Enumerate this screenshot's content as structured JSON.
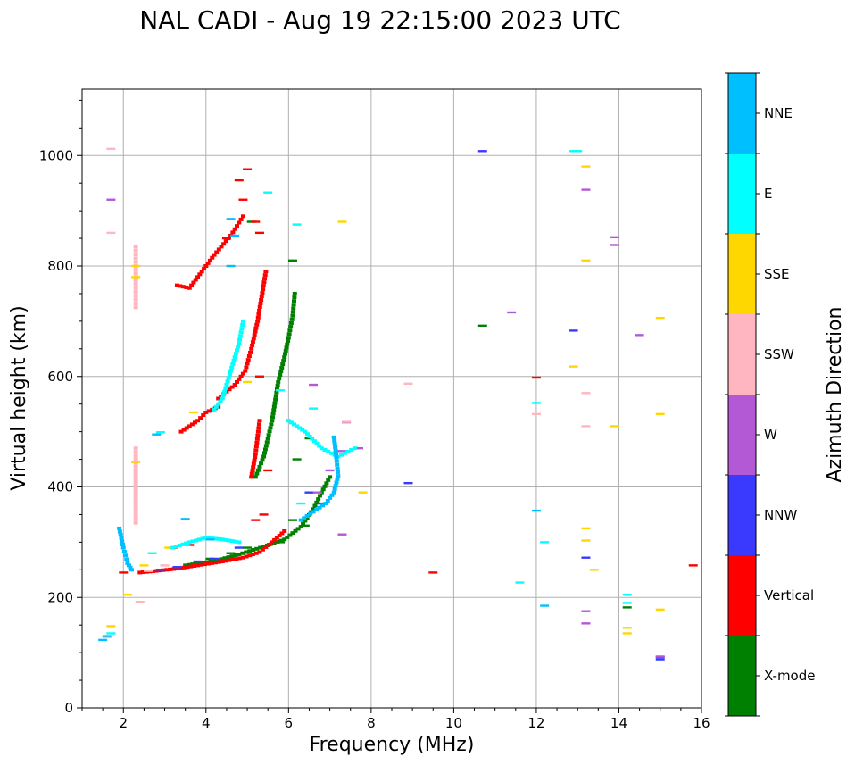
{
  "chart_data": {
    "type": "scatter",
    "title": "NAL CADI - Aug 19 22:15:00 2023 UTC",
    "xlabel": "Frequency (MHz)",
    "ylabel": "Virtual height (km)",
    "xlim": [
      1,
      16
    ],
    "ylim": [
      0,
      1120
    ],
    "xticks": [
      2,
      4,
      6,
      8,
      10,
      12,
      14,
      16
    ],
    "xtick_labels": [
      "2",
      "4",
      "6",
      "8",
      "10",
      "12",
      "14",
      "16"
    ],
    "yticks": [
      0,
      200,
      400,
      600,
      800,
      1000
    ],
    "ytick_labels": [
      "0",
      "200",
      "400",
      "600",
      "800",
      "1000"
    ],
    "grid": true,
    "colorbar": {
      "title": "Azimuth Direction",
      "categories": [
        "X-mode",
        "Vertical",
        "NNW",
        "W",
        "SSW",
        "SSE",
        "E",
        "NNE"
      ],
      "colors": [
        "#008000",
        "#ff0000",
        "#3a3aff",
        "#b459d6",
        "#ffb6c1",
        "#ffd700",
        "#00ffff",
        "#00bfff"
      ]
    },
    "traces": [
      {
        "name": "X-mode",
        "color": "#008000",
        "segments": [
          [
            [
              3.5,
              258
            ],
            [
              4.2,
              266
            ],
            [
              4.8,
              278
            ],
            [
              5.4,
              292
            ],
            [
              5.9,
              305
            ],
            [
              6.3,
              328
            ],
            [
              6.6,
              360
            ],
            [
              6.8,
              390
            ],
            [
              7.0,
              418
            ]
          ],
          [
            [
              5.2,
              418
            ],
            [
              5.4,
              455
            ],
            [
              5.6,
              520
            ],
            [
              5.75,
              590
            ],
            [
              5.9,
              635
            ],
            [
              6.0,
              670
            ],
            [
              6.1,
              710
            ],
            [
              6.15,
              750
            ]
          ]
        ],
        "points": [
          [
            4.1,
            270
          ],
          [
            4.6,
            280
          ],
          [
            5.0,
            290
          ],
          [
            5.8,
            300
          ],
          [
            6.1,
            340
          ],
          [
            6.4,
            330
          ],
          [
            5.1,
            880
          ],
          [
            6.1,
            810
          ],
          [
            10.7,
            692
          ],
          [
            6.5,
            488
          ],
          [
            6.2,
            450
          ],
          [
            14.2,
            182
          ]
        ]
      },
      {
        "name": "Vertical",
        "color": "#ff0000",
        "segments": [
          [
            [
              2.4,
              245
            ],
            [
              2.8,
              248
            ],
            [
              3.3,
              252
            ],
            [
              3.8,
              258
            ],
            [
              4.4,
              265
            ],
            [
              4.9,
              272
            ],
            [
              5.3,
              282
            ],
            [
              5.6,
              300
            ],
            [
              5.9,
              320
            ]
          ],
          [
            [
              4.3,
              560
            ],
            [
              4.7,
              585
            ],
            [
              4.95,
              610
            ],
            [
              5.1,
              650
            ],
            [
              5.25,
              700
            ],
            [
              5.35,
              745
            ],
            [
              5.45,
              790
            ]
          ],
          [
            [
              3.4,
              500
            ],
            [
              3.8,
              520
            ],
            [
              4.0,
              535
            ],
            [
              4.3,
              545
            ]
          ],
          [
            [
              3.3,
              765
            ],
            [
              3.6,
              760
            ],
            [
              3.9,
              790
            ],
            [
              4.2,
              820
            ],
            [
              4.6,
              855
            ],
            [
              4.9,
              890
            ]
          ],
          [
            [
              5.1,
              418
            ],
            [
              5.2,
              460
            ],
            [
              5.3,
              520
            ]
          ]
        ],
        "points": [
          [
            5.2,
            880
          ],
          [
            4.5,
            850
          ],
          [
            5.3,
            860
          ],
          [
            4.9,
            920
          ],
          [
            4.8,
            955
          ],
          [
            5.0,
            975
          ],
          [
            5.5,
            430
          ],
          [
            5.3,
            600
          ],
          [
            12.0,
            598
          ],
          [
            15.8,
            258
          ],
          [
            9.5,
            245
          ],
          [
            5.2,
            340
          ],
          [
            5.4,
            350
          ],
          [
            2.0,
            245
          ],
          [
            3.2,
            290
          ],
          [
            3.6,
            295
          ]
        ]
      },
      {
        "name": "NNW",
        "color": "#3a3aff",
        "points": [
          [
            2.9,
            250
          ],
          [
            3.3,
            255
          ],
          [
            3.8,
            265
          ],
          [
            4.2,
            270
          ],
          [
            6.5,
            390
          ],
          [
            8.9,
            407
          ],
          [
            10.7,
            1008
          ],
          [
            12.9,
            683
          ],
          [
            13.2,
            272
          ],
          [
            15.0,
            92
          ],
          [
            15.0,
            88
          ],
          [
            4.8,
            290
          ],
          [
            6.8,
            370
          ]
        ]
      },
      {
        "name": "W",
        "color": "#b459d6",
        "points": [
          [
            6.7,
            390
          ],
          [
            7.0,
            430
          ],
          [
            7.3,
            465
          ],
          [
            7.7,
            470
          ],
          [
            6.6,
            585
          ],
          [
            7.4,
            517
          ],
          [
            7.3,
            314
          ],
          [
            11.4,
            716
          ],
          [
            13.2,
            938
          ],
          [
            13.9,
            852
          ],
          [
            13.9,
            838
          ],
          [
            14.5,
            675
          ],
          [
            13.2,
            175
          ],
          [
            13.2,
            153
          ],
          [
            15.0,
            93
          ],
          [
            1.7,
            920
          ]
        ]
      },
      {
        "name": "SSW",
        "color": "#ffb6c1",
        "segments": [
          [
            [
              2.3,
              335
            ],
            [
              2.3,
              380
            ],
            [
              2.3,
              430
            ],
            [
              2.3,
              470
            ]
          ],
          [
            [
              2.3,
              725
            ],
            [
              2.3,
              760
            ],
            [
              2.3,
              800
            ],
            [
              2.3,
              835
            ]
          ]
        ],
        "points": [
          [
            2.6,
            248
          ],
          [
            3.0,
            258
          ],
          [
            8.9,
            587
          ],
          [
            12.0,
            532
          ],
          [
            13.2,
            570
          ],
          [
            13.2,
            510
          ],
          [
            2.4,
            192
          ],
          [
            1.6,
            128
          ],
          [
            7.4,
            518
          ],
          [
            1.7,
            1012
          ],
          [
            1.7,
            860
          ]
        ]
      },
      {
        "name": "SSE",
        "color": "#ffd700",
        "points": [
          [
            2.3,
            445
          ],
          [
            2.3,
            800
          ],
          [
            2.3,
            780
          ],
          [
            12.9,
            618
          ],
          [
            13.2,
            980
          ],
          [
            13.2,
            810
          ],
          [
            13.2,
            325
          ],
          [
            13.2,
            303
          ],
          [
            13.4,
            250
          ],
          [
            13.9,
            510
          ],
          [
            15.0,
            706
          ],
          [
            15.0,
            532
          ],
          [
            15.0,
            178
          ],
          [
            14.2,
            145
          ],
          [
            14.2,
            135
          ],
          [
            7.8,
            390
          ],
          [
            5.0,
            590
          ],
          [
            3.7,
            535
          ],
          [
            3.1,
            290
          ],
          [
            7.3,
            880
          ],
          [
            2.1,
            205
          ],
          [
            1.7,
            148
          ],
          [
            2.5,
            258
          ]
        ]
      },
      {
        "name": "E",
        "color": "#00ffff",
        "segments": [
          [
            [
              3.2,
              290
            ],
            [
              3.6,
              300
            ],
            [
              4.0,
              308
            ],
            [
              4.4,
              305
            ],
            [
              4.8,
              300
            ]
          ],
          [
            [
              6.0,
              520
            ],
            [
              6.4,
              500
            ],
            [
              6.8,
              470
            ],
            [
              7.2,
              455
            ],
            [
              7.6,
              470
            ]
          ],
          [
            [
              4.2,
              540
            ],
            [
              4.4,
              560
            ],
            [
              4.6,
              610
            ],
            [
              4.8,
              660
            ],
            [
              4.9,
              700
            ]
          ]
        ],
        "points": [
          [
            12.9,
            1008
          ],
          [
            13.0,
            1008
          ],
          [
            12.2,
            300
          ],
          [
            11.6,
            227
          ],
          [
            12.0,
            552
          ],
          [
            14.2,
            205
          ],
          [
            14.2,
            190
          ],
          [
            6.2,
            875
          ],
          [
            5.5,
            933
          ],
          [
            2.7,
            280
          ],
          [
            3.5,
            295
          ],
          [
            2.9,
            499
          ],
          [
            1.7,
            135
          ],
          [
            6.6,
            542
          ],
          [
            6.3,
            370
          ],
          [
            5.8,
            575
          ]
        ]
      },
      {
        "name": "NNE",
        "color": "#00bfff",
        "segments": [
          [
            [
              6.3,
              340
            ],
            [
              6.6,
              355
            ],
            [
              6.9,
              370
            ],
            [
              7.1,
              390
            ],
            [
              7.2,
              420
            ],
            [
              7.15,
              460
            ],
            [
              7.1,
              490
            ]
          ],
          [
            [
              1.9,
              325
            ],
            [
              2.0,
              290
            ],
            [
              2.1,
              262
            ],
            [
              2.2,
              250
            ]
          ]
        ],
        "points": [
          [
            12.0,
            357
          ],
          [
            12.2,
            185
          ],
          [
            4.7,
            855
          ],
          [
            4.6,
            885
          ],
          [
            3.5,
            342
          ],
          [
            2.8,
            495
          ],
          [
            4.1,
            305
          ],
          [
            4.6,
            800
          ],
          [
            1.5,
            123
          ],
          [
            1.6,
            130
          ]
        ]
      }
    ]
  }
}
